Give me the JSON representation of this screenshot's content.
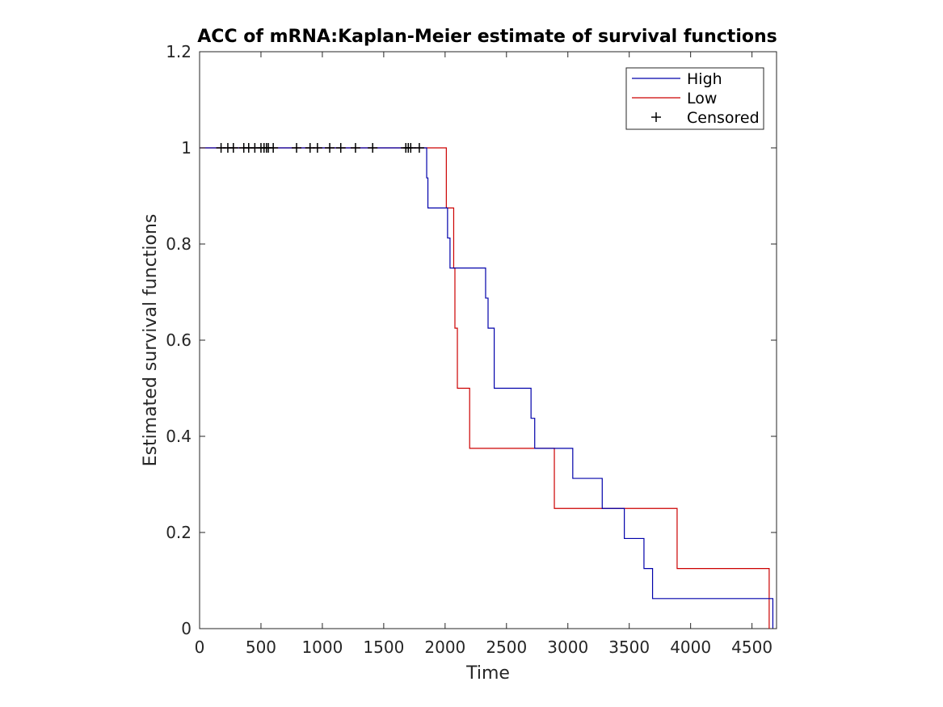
{
  "chart_data": {
    "type": "line",
    "title": "ACC of mRNA:Kaplan-Meier estimate of survival functions",
    "xlabel": "Time",
    "ylabel": "Estimated survival functions",
    "xlim": [
      0,
      4700
    ],
    "ylim": [
      0,
      1.2
    ],
    "xticks": [
      0,
      500,
      1000,
      1500,
      2000,
      2500,
      3000,
      3500,
      4000,
      4500
    ],
    "yticks": [
      0,
      0.2,
      0.4,
      0.6,
      0.8,
      1,
      1.2
    ],
    "xtick_labels": [
      "0",
      "500",
      "1000",
      "1500",
      "2000",
      "2500",
      "3000",
      "3500",
      "4000",
      "4500"
    ],
    "ytick_labels": [
      "0",
      "0.2",
      "0.4",
      "0.6",
      "0.8",
      "1",
      "1.2"
    ],
    "grid": false,
    "legend_position": "top-right",
    "series": [
      {
        "name": "High",
        "color": "#0000aa",
        "x": [
          0,
          1850,
          1850,
          1860,
          1860,
          2020,
          2020,
          2040,
          2040,
          2330,
          2330,
          2350,
          2350,
          2400,
          2400,
          2700,
          2700,
          2730,
          2730,
          3040,
          3040,
          3280,
          3280,
          3460,
          3460,
          3620,
          3620,
          3690,
          3690,
          4670,
          4670
        ],
        "y": [
          1,
          1,
          0.9375,
          0.9375,
          0.875,
          0.875,
          0.8125,
          0.8125,
          0.75,
          0.75,
          0.6875,
          0.6875,
          0.625,
          0.625,
          0.5,
          0.5,
          0.4375,
          0.4375,
          0.375,
          0.375,
          0.3125,
          0.3125,
          0.25,
          0.25,
          0.1875,
          0.1875,
          0.125,
          0.125,
          0.0625,
          0.0625,
          0
        ]
      },
      {
        "name": "Low",
        "color": "#cc0000",
        "x": [
          0,
          2010,
          2010,
          2070,
          2070,
          2080,
          2080,
          2100,
          2100,
          2200,
          2200,
          2890,
          2890,
          3890,
          3890,
          4640,
          4640
        ],
        "y": [
          1,
          1,
          0.875,
          0.875,
          0.75,
          0.75,
          0.625,
          0.625,
          0.5,
          0.5,
          0.375,
          0.375,
          0.25,
          0.25,
          0.125,
          0.125,
          0
        ]
      }
    ],
    "censored": {
      "name": "Censored",
      "color": "#000000",
      "x": [
        175,
        230,
        275,
        360,
        400,
        450,
        500,
        525,
        545,
        560,
        600,
        790,
        900,
        960,
        1060,
        1150,
        1270,
        1410,
        1680,
        1700,
        1720,
        1790
      ],
      "y": [
        1,
        1,
        1,
        1,
        1,
        1,
        1,
        1,
        1,
        1,
        1,
        1,
        1,
        1,
        1,
        1,
        1,
        1,
        1,
        1,
        1,
        1
      ]
    }
  }
}
